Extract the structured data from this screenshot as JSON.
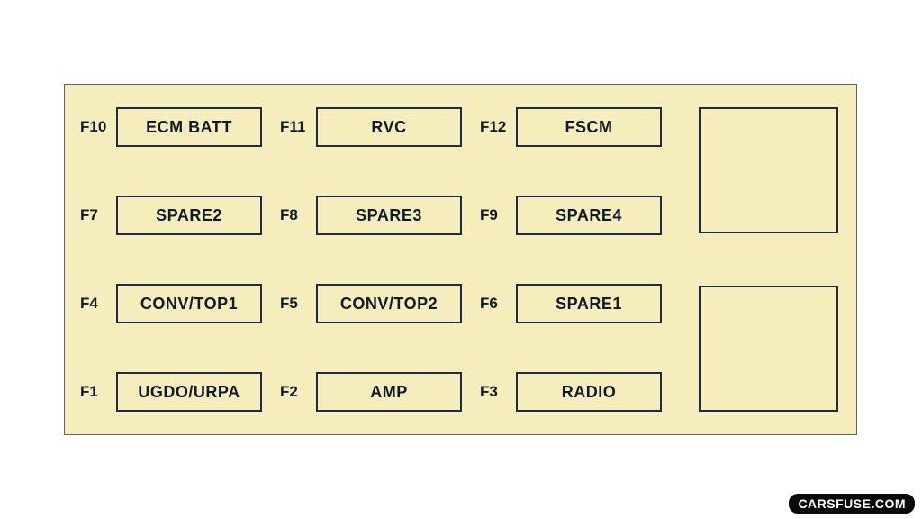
{
  "diagram": {
    "type": "table",
    "background_color": "#f5eebc",
    "page_background": "#ffffff",
    "border_color": "#1a2c4a",
    "text_color": "#0f1a2b",
    "font_family": "Arial",
    "label_fontsize": 17,
    "cell_fontsize": 18,
    "cell_fontweight": 800,
    "rows": [
      [
        {
          "id": "F10",
          "label": "ECM BATT"
        },
        {
          "id": "F11",
          "label": "RVC"
        },
        {
          "id": "F12",
          "label": "FSCM"
        }
      ],
      [
        {
          "id": "F7",
          "label": "SPARE2"
        },
        {
          "id": "F8",
          "label": "SPARE3"
        },
        {
          "id": "F9",
          "label": "SPARE4"
        }
      ],
      [
        {
          "id": "F4",
          "label": "CONV/TOP1"
        },
        {
          "id": "F5",
          "label": "CONV/TOP2"
        },
        {
          "id": "F6",
          "label": "SPARE1"
        }
      ],
      [
        {
          "id": "F1",
          "label": "UGDO/URPA"
        },
        {
          "id": "F2",
          "label": "AMP"
        },
        {
          "id": "F3",
          "label": "RADIO"
        }
      ]
    ],
    "right_blank_top": true,
    "right_blank_bottom": true
  },
  "watermark": {
    "text": "CARSFUSE.COM"
  }
}
